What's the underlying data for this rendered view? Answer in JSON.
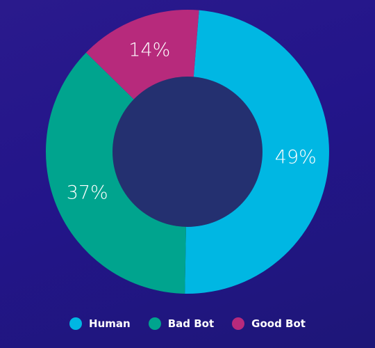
{
  "chart_data": {
    "type": "pie",
    "donut": true,
    "title": "",
    "slices": [
      {
        "name": "Human",
        "value": 49,
        "label": "49%",
        "color": "#00b7e3"
      },
      {
        "name": "Bad Bot",
        "value": 37,
        "label": "37%",
        "color": "#00a48e"
      },
      {
        "name": "Good Bot",
        "value": 14,
        "label": "14%",
        "color": "#b72a7c"
      }
    ],
    "center_color": "#243070",
    "legend_position": "bottom"
  },
  "legend": {
    "items": [
      {
        "label": "Human",
        "color": "#00b7e3"
      },
      {
        "label": "Bad Bot",
        "color": "#00a48e"
      },
      {
        "label": "Good Bot",
        "color": "#b72a7c"
      }
    ]
  }
}
